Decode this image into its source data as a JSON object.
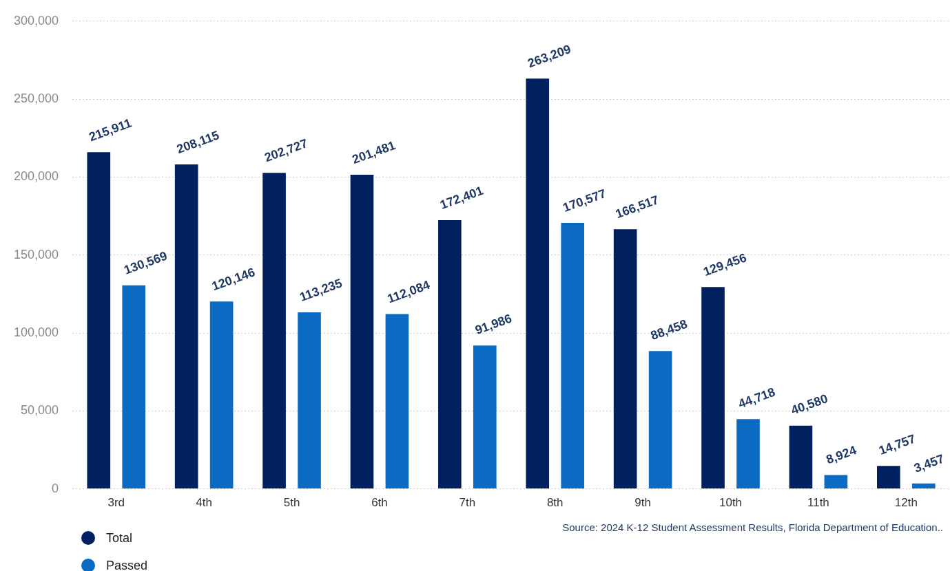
{
  "chart_data": {
    "type": "bar",
    "categories": [
      "3rd",
      "4th",
      "5th",
      "6th",
      "7th",
      "8th",
      "9th",
      "10th",
      "11th",
      "12th"
    ],
    "series": [
      {
        "name": "Total",
        "color": "#002060",
        "values": [
          215911,
          208115,
          202727,
          201481,
          172401,
          263209,
          166517,
          129456,
          40580,
          14757
        ],
        "value_labels": [
          "215,911",
          "208,115",
          "202,727",
          "201,481",
          "172,401",
          "263,209",
          "166,517",
          "129,456",
          "40,580",
          "14,757"
        ]
      },
      {
        "name": "Passed",
        "color": "#0b6bc2",
        "values": [
          130569,
          120146,
          113235,
          112084,
          91986,
          170577,
          88458,
          44718,
          8924,
          3457
        ],
        "value_labels": [
          "130,569",
          "120,146",
          "113,235",
          "112,084",
          "91,986",
          "170,577",
          "88,458",
          "44,718",
          "8,924",
          "3,457"
        ]
      }
    ],
    "ylim": [
      0,
      300000
    ],
    "yticks": [
      0,
      {
        "value": 50000,
        "label": "50,000"
      },
      {
        "value": 100000,
        "label": "100,000"
      },
      {
        "value": 150000,
        "label": "150,000"
      },
      {
        "value": 200000,
        "label": "200,000"
      },
      {
        "value": 250000,
        "label": "250,000"
      },
      {
        "value": 300000,
        "label": "300,000"
      }
    ],
    "grid": "y",
    "legend": "bottom left",
    "annotations": [
      "Source: 2024 K-12 Student Assessment Results, Florida Department of Education.."
    ]
  }
}
